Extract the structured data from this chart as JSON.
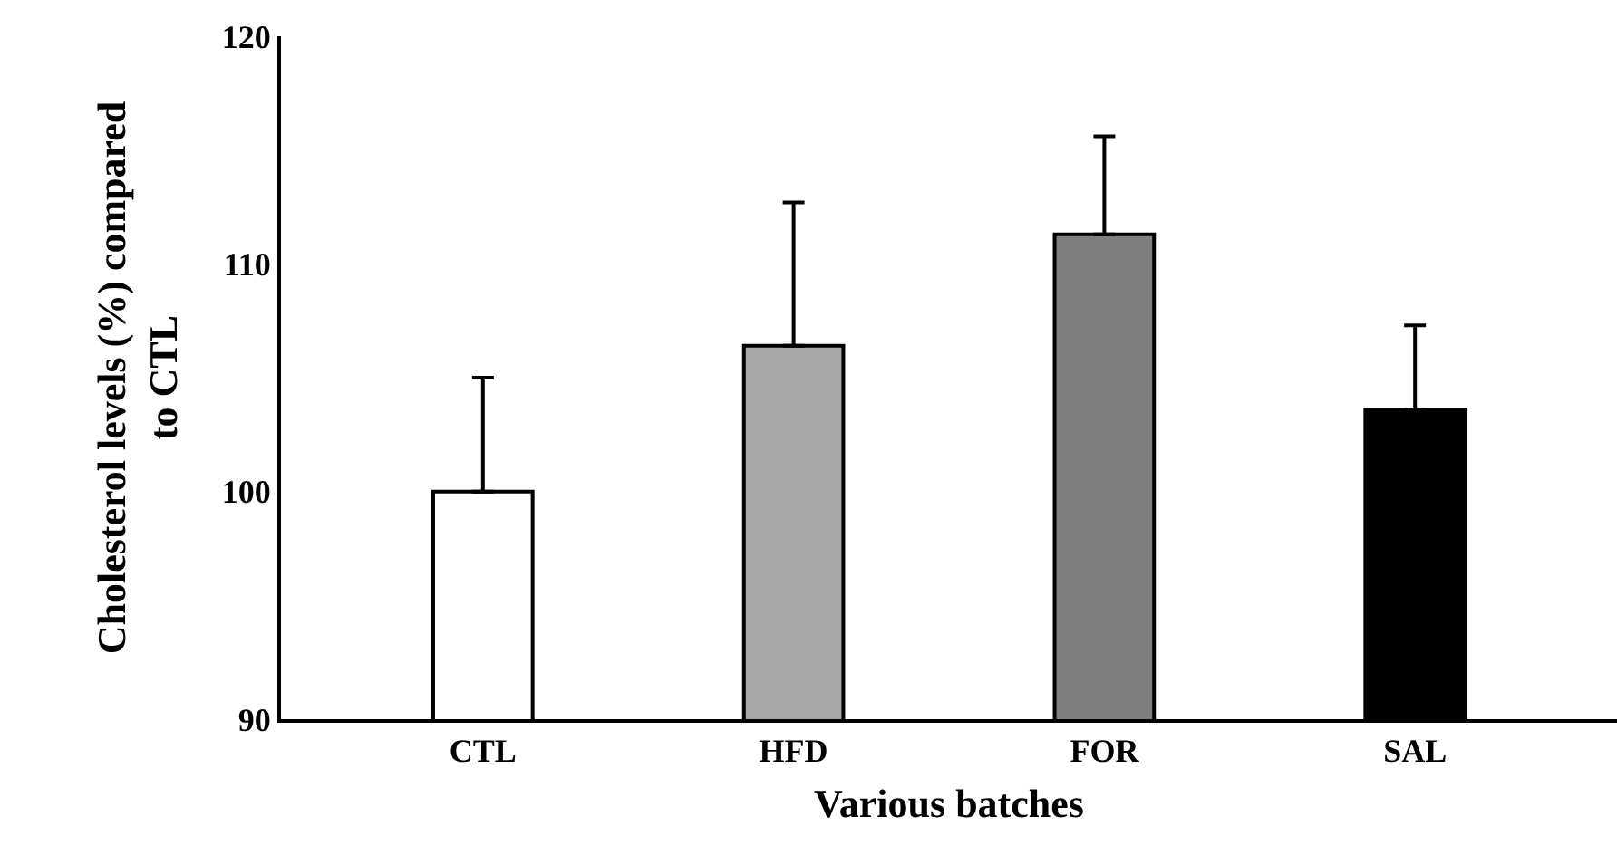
{
  "chart_data": {
    "type": "bar",
    "xlabel": "Various batches",
    "ylabel": "Cholesterol levels (%) compared\nto CTL",
    "categories": [
      "CTL",
      "HFD",
      "FOR",
      "SAL"
    ],
    "values": [
      100.0,
      106.4,
      111.3,
      103.6
    ],
    "colors": [
      "#ffffff",
      "#a6a6a6",
      "#7f7f7f",
      "#000000"
    ],
    "errors": [
      [
        100.0,
        105.0
      ],
      [
        106.4,
        112.7
      ],
      [
        111.3,
        115.6
      ],
      [
        103.6,
        107.3
      ]
    ],
    "ylim": [
      90,
      120
    ],
    "yticks": [
      90,
      100,
      110,
      120
    ]
  }
}
